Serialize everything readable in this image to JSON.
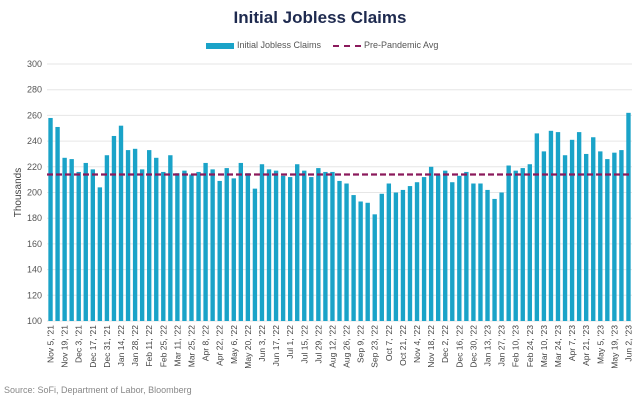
{
  "title": "Initial Jobless Claims",
  "source": "Source: SoFi, Department of Labor, Bloomberg",
  "legend": {
    "bars": "Initial Jobless Claims",
    "line": "Pre-Pandemic Avg"
  },
  "colors": {
    "bar": "#1aa3c8",
    "avg_line": "#8b1a5c",
    "title": "#1e2a4f",
    "grid": "#e6e6e6"
  },
  "chart_data": {
    "type": "bar",
    "title": "Initial Jobless Claims",
    "xlabel": "",
    "ylabel": "Thousands",
    "ylim": [
      100,
      300
    ],
    "yticks": [
      100,
      120,
      140,
      160,
      180,
      200,
      220,
      240,
      260,
      280,
      300
    ],
    "grid": true,
    "legend_position": "top-center",
    "tick_labels": [
      "Nov 5, '21",
      "Nov 19, '21",
      "Dec 3, '21",
      "Dec 17, '21",
      "Dec 31, '21",
      "Jan 14, '22",
      "Jan 28, '22",
      "Feb 11, '22",
      "Feb 25, '22",
      "Mar 11, '22",
      "Mar 25, '22",
      "Apr 8, '22",
      "Apr 22, '22",
      "May 6, '22",
      "May 20, '22",
      "Jun 3, '22",
      "Jun 17, '22",
      "Jul 1, '22",
      "Jul 15, '22",
      "Jul 29, '22",
      "Aug 12, '22",
      "Aug 26, '22",
      "Sep 9, '22",
      "Sep 23, '22",
      "Oct 7, '22",
      "Oct 21, '22",
      "Nov 4, '22",
      "Nov 18, '22",
      "Dec 2, '22",
      "Dec 16, '22",
      "Dec 30, '22",
      "Jan 13, '23",
      "Jan 27, '23",
      "Feb 10, '23",
      "Feb 24, '23",
      "Mar 10, '23",
      "Mar 24, '23",
      "Apr 7, '23",
      "Apr 21, '23",
      "May 5, '23",
      "May 19, '23",
      "Jun 2, '23"
    ],
    "series": [
      {
        "name": "Initial Jobless Claims",
        "values": [
          258,
          251,
          227,
          226,
          216,
          223,
          218,
          204,
          229,
          244,
          252,
          233,
          234,
          218,
          233,
          227,
          216,
          229,
          215,
          217,
          214,
          216,
          223,
          218,
          209,
          219,
          211,
          223,
          215,
          203,
          222,
          218,
          217,
          213,
          212,
          222,
          217,
          212,
          219,
          216,
          216,
          209,
          207,
          198,
          193,
          192,
          183,
          199,
          207,
          200,
          202,
          205,
          208,
          212,
          220,
          214,
          217,
          208,
          213,
          216,
          207,
          207,
          202,
          195,
          200,
          221,
          217,
          219,
          222,
          246,
          232,
          248,
          247,
          229,
          241,
          247,
          230,
          243,
          232,
          226,
          231,
          233,
          262
        ]
      },
      {
        "name": "Pre-Pandemic Avg",
        "type": "line",
        "value": 214
      }
    ]
  }
}
